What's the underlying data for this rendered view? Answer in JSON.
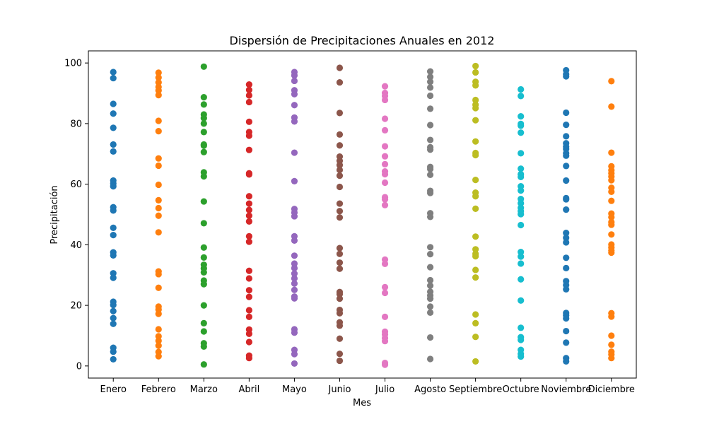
{
  "chart_data": {
    "type": "scatter",
    "title": "Dispersión de Precipitaciones Anuales en 2012",
    "xlabel": "Mes",
    "ylabel": "Precipitación",
    "ylim": [
      -4,
      104
    ],
    "yticks": [
      0,
      20,
      40,
      60,
      80,
      100
    ],
    "grid": false,
    "categories": [
      "Enero",
      "Febrero",
      "Marzo",
      "Abril",
      "Mayo",
      "Junio",
      "Julio",
      "Agosto",
      "Septiembre",
      "Octubre",
      "Noviembre",
      "Diciembre"
    ],
    "colors": [
      "#1f77b4",
      "#ff7f0e",
      "#2ca02c",
      "#d62728",
      "#9467bd",
      "#8c564b",
      "#e377c2",
      "#7f7f7f",
      "#bcbd22",
      "#17becf",
      "#1f77b4",
      "#ff7f0e"
    ],
    "series": [
      {
        "values": [
          97,
          95,
          86.5,
          83.3,
          78.6,
          73.1,
          70.8,
          61.2,
          60.2,
          59.3,
          52.4,
          51.3,
          45.6,
          43.2,
          37.5,
          36.5,
          30.6,
          29.1,
          21.2,
          20.1,
          18.1,
          15.8,
          13.9,
          6,
          4.7,
          2.2
        ]
      },
      {
        "values": [
          96.8,
          95.2,
          93.6,
          92.1,
          90.9,
          89.4,
          80.9,
          77.5,
          68.5,
          66.1,
          59.8,
          54.7,
          52.1,
          49.6,
          44.1,
          31.2,
          30.3,
          25.8,
          19.6,
          18.6,
          17.2,
          12.1,
          9.8,
          8.3,
          6.7,
          4.6,
          3.2
        ]
      },
      {
        "values": [
          98.8,
          88.7,
          86.3,
          83,
          81.8,
          80,
          77.2,
          73.1,
          72.7,
          70.6,
          63.9,
          62.6,
          54.3,
          47.1,
          39.1,
          35.8,
          33.4,
          32.2,
          30.9,
          28.2,
          27,
          20,
          14.1,
          11.4,
          7.5,
          6.4,
          0.5
        ]
      },
      {
        "values": [
          92.9,
          91.1,
          89.3,
          87.1,
          80.6,
          77.2,
          76,
          71.3,
          63.6,
          63.2,
          56,
          53.6,
          51.5,
          49.6,
          47.7,
          42.8,
          41,
          31.4,
          28.9,
          25,
          22.8,
          18.4,
          16.2,
          12,
          10.6,
          7.9,
          3.4,
          2.6
        ]
      },
      {
        "values": [
          97,
          95.9,
          94.1,
          91,
          89.7,
          86.1,
          82,
          80.7,
          70.4,
          61,
          51.8,
          50.6,
          49.4,
          42.8,
          41.4,
          36.4,
          33.8,
          32.3,
          30.5,
          28.9,
          27.2,
          25.1,
          22.9,
          22.3,
          12.1,
          11,
          5.3,
          3.9,
          0.8
        ]
      },
      {
        "values": [
          98.4,
          93.6,
          83.5,
          76.4,
          72.8,
          69.1,
          67.7,
          66.3,
          64.7,
          62.8,
          59.1,
          53.6,
          51.1,
          49,
          38.9,
          37,
          34.1,
          32.1,
          24.4,
          23.7,
          22.2,
          18.5,
          17.4,
          14.4,
          13.3,
          9,
          4,
          1.7
        ]
      },
      {
        "values": [
          92.3,
          90.1,
          89.1,
          87.8,
          81.6,
          77.8,
          72.5,
          69.2,
          66.6,
          64.2,
          63.3,
          60.5,
          55.7,
          55,
          53.1,
          35.1,
          33.7,
          26,
          24.1,
          16.2,
          11.3,
          10.4,
          9.2,
          8.2,
          1,
          0.4
        ]
      },
      {
        "values": [
          97.2,
          95.4,
          93.8,
          91.9,
          89.2,
          84.9,
          79.5,
          74.6,
          72.2,
          71.4,
          65.7,
          65,
          63.1,
          57.8,
          57.1,
          50.4,
          49.2,
          39.2,
          36.9,
          32.6,
          28.3,
          26.5,
          24.5,
          23.3,
          22.2,
          19.6,
          17.6,
          9.4,
          2.3
        ]
      },
      {
        "values": [
          99,
          96.9,
          93.8,
          92.6,
          87.8,
          86.2,
          85.1,
          81.1,
          74.1,
          70.3,
          69.6,
          61.4,
          57.2,
          56,
          51.9,
          42.7,
          38.5,
          37,
          36.2,
          31.7,
          29.2,
          17,
          14.1,
          9.6,
          1.5
        ]
      },
      {
        "values": [
          91.3,
          89.1,
          82.4,
          79.9,
          79.3,
          77,
          70.2,
          65.1,
          63.3,
          62.4,
          59.3,
          57.9,
          55.1,
          53.7,
          52.2,
          51.1,
          50.1,
          46.5,
          37.6,
          36.1,
          33.8,
          28.6,
          21.6,
          12.6,
          9.5,
          8.6,
          5.3,
          4,
          3.1
        ]
      },
      {
        "values": [
          97.6,
          96.3,
          95.6,
          83.6,
          79.6,
          75.8,
          73.5,
          72.4,
          71.6,
          70.2,
          69.4,
          66,
          61.2,
          55.4,
          55,
          51.6,
          43.9,
          42.3,
          40.8,
          35.7,
          32.3,
          28,
          26.7,
          25.3,
          17.5,
          16.7,
          15.7,
          11.5,
          7.7,
          2.6,
          1.5
        ]
      },
      {
        "values": [
          94,
          85.6,
          70.4,
          65.9,
          64.6,
          63.6,
          62.5,
          61.3,
          58.8,
          57.5,
          54.5,
          50.3,
          49.1,
          47.5,
          46.6,
          43.4,
          40.1,
          39.1,
          38.1,
          37.4,
          17.4,
          16.3,
          10,
          7,
          4.7,
          3.8,
          2.6
        ]
      }
    ]
  }
}
